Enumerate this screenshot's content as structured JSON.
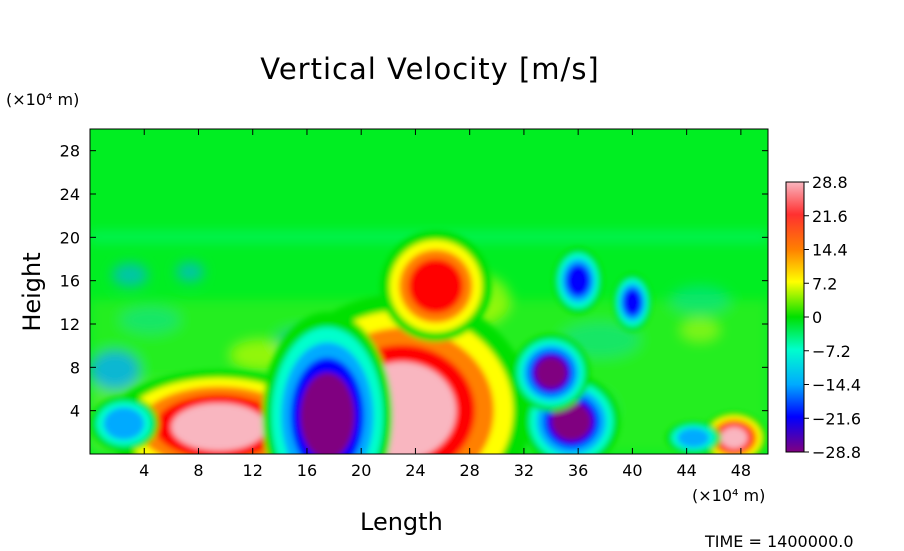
{
  "chart_data": {
    "type": "heatmap",
    "title": "Vertical Velocity [m/s]",
    "xlabel": "Length",
    "ylabel": "Height",
    "x_unit": "(×10⁴ m)",
    "y_unit": "(×10⁴ m)",
    "x_ticks": [
      "4",
      "8",
      "12",
      "16",
      "20",
      "24",
      "28",
      "32",
      "36",
      "40",
      "44",
      "48"
    ],
    "y_ticks": [
      "4",
      "8",
      "12",
      "16",
      "20",
      "24",
      "28"
    ],
    "xlim": [
      0,
      50
    ],
    "ylim": [
      0,
      30
    ],
    "colorbar_ticks": [
      "28.8",
      "21.6",
      "14.4",
      "7.2",
      "0",
      "−7.2",
      "−14.4",
      "−21.6",
      "−28.8"
    ],
    "colorbar_range": [
      -28.8,
      28.8
    ],
    "colorbar_colors": [
      "#f9b6c0",
      "#ff0000",
      "#ff8000",
      "#ffff00",
      "#00e000",
      "#00ffcc",
      "#00aaff",
      "#0000ff",
      "#800080"
    ],
    "background_color": "#00ee22",
    "regions": [
      {
        "label": "updraft",
        "x": 9.5,
        "y": 2.5,
        "rx": 3.5,
        "ry": 2.2,
        "value": 28.8
      },
      {
        "label": "updraft",
        "x": 23,
        "y": 4.0,
        "rx": 4.0,
        "ry": 4.5,
        "value": 28.8
      },
      {
        "label": "updraft",
        "x": 25.5,
        "y": 15.5,
        "rx": 2.0,
        "ry": 2.5,
        "value": 25
      },
      {
        "label": "updraft",
        "x": 47.5,
        "y": 1.5,
        "rx": 1.0,
        "ry": 1.0,
        "value": 28.8
      },
      {
        "label": "downdraft",
        "x": 17.5,
        "y": 3.5,
        "rx": 2.0,
        "ry": 4.0,
        "value": -28.8
      },
      {
        "label": "downdraft",
        "x": 35.5,
        "y": 3.0,
        "rx": 1.5,
        "ry": 1.8,
        "value": -28.8
      },
      {
        "label": "downdraft",
        "x": 34,
        "y": 7.5,
        "rx": 1.2,
        "ry": 1.5,
        "value": -26
      },
      {
        "label": "downdraft",
        "x": 36,
        "y": 16.0,
        "rx": 0.9,
        "ry": 1.5,
        "value": -25
      },
      {
        "label": "downdraft",
        "x": 40,
        "y": 14.0,
        "rx": 0.7,
        "ry": 1.3,
        "value": -22
      },
      {
        "label": "downdraft",
        "x": 2.5,
        "y": 2.8,
        "rx": 1.5,
        "ry": 1.5,
        "value": -18
      },
      {
        "label": "downdraft",
        "x": 44.5,
        "y": 1.5,
        "rx": 1.2,
        "ry": 0.9,
        "value": -18
      }
    ]
  },
  "footer": {
    "time_label": "TIME = 1400000.0"
  }
}
